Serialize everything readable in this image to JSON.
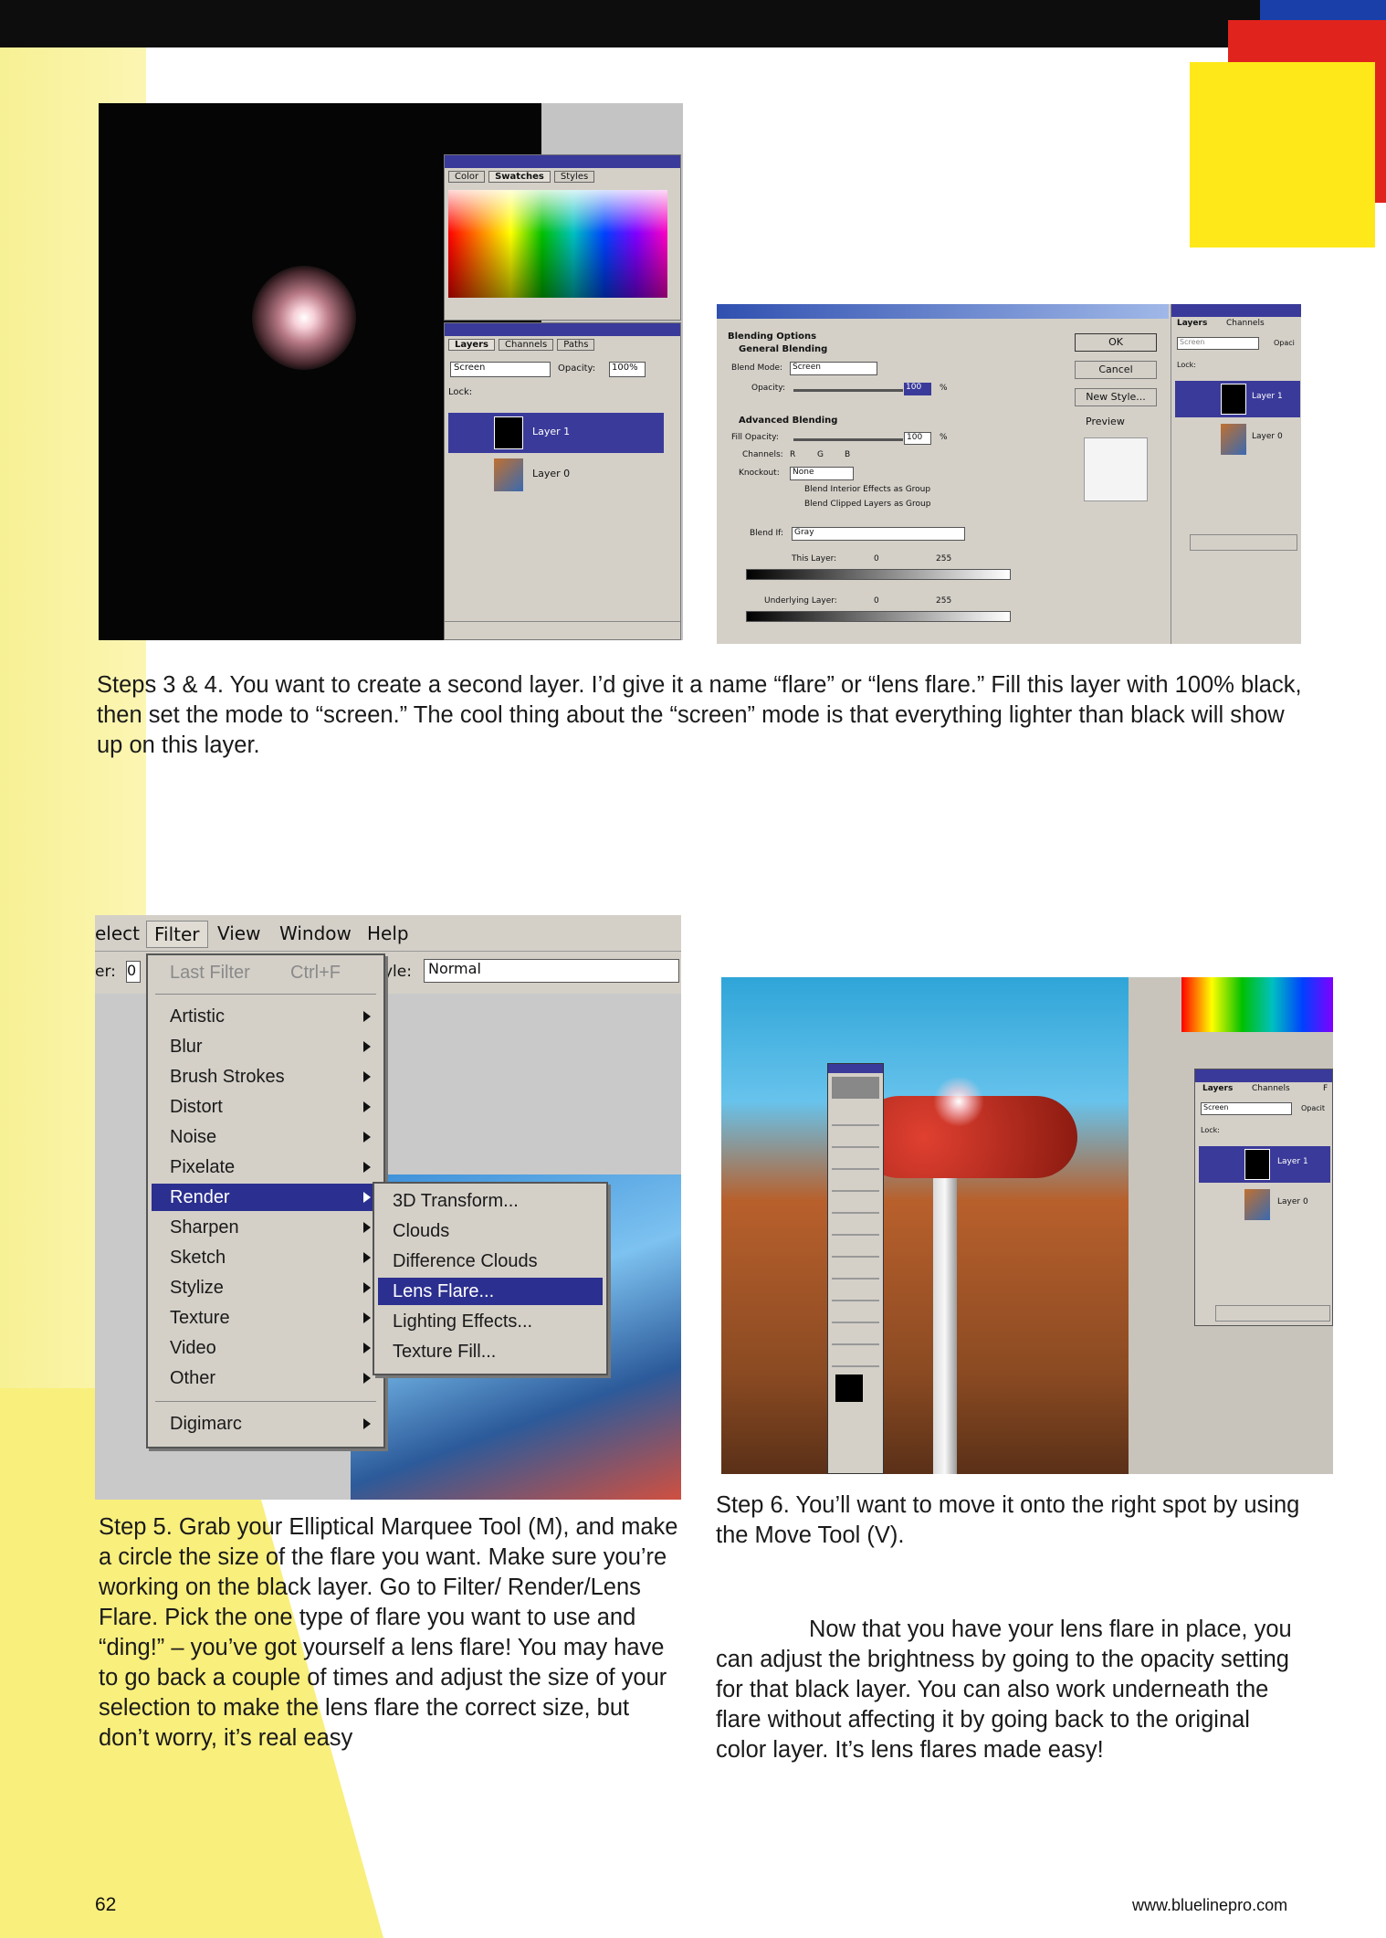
{
  "page": {
    "number": "62",
    "website": "www.bluelinepro.com"
  },
  "shot1": {
    "palette_tabs": [
      "Color",
      "Swatches",
      "Styles"
    ],
    "layers_tabs": [
      "Layers",
      "Channels",
      "Paths"
    ],
    "blend_mode": "Screen",
    "opacity_label": "Opacity:",
    "opacity_value": "100%",
    "lock_label": "Lock:",
    "layers": [
      "Layer 1",
      "Layer 0"
    ]
  },
  "shot2": {
    "section_title": "Blending Options",
    "general": "General Blending",
    "blend_mode_label": "Blend Mode:",
    "blend_mode_value": "Screen",
    "opacity_label": "Opacity:",
    "opacity_value": "100",
    "percent": "%",
    "advanced": "Advanced Blending",
    "fill_opacity_label": "Fill Opacity:",
    "fill_opacity_value": "100",
    "channels_label": "Channels:",
    "channels": [
      "R",
      "G",
      "B"
    ],
    "knockout_label": "Knockout:",
    "knockout_value": "None",
    "blend_interior": "Blend Interior Effects as Group",
    "blend_clipped": "Blend Clipped Layers as Group",
    "blend_if_label": "Blend If:",
    "blend_if_value": "Gray",
    "this_layer": "This Layer:",
    "underlying_layer": "Underlying Layer:",
    "range_min": "0",
    "range_max": "255",
    "buttons": [
      "OK",
      "Cancel",
      "New Style..."
    ],
    "preview_label": "Preview",
    "layers_tabs": [
      "Layers",
      "Channels"
    ],
    "layers_mode": "Screen",
    "layers_opacity": "Opaci",
    "lock_label": "Lock:",
    "layers": [
      "Layer 1",
      "Layer 0"
    ]
  },
  "caption1": "Steps 3 & 4. You want to create a second layer. I’d give it a name “flare” or “lens flare.” Fill this layer with 100% black, then set the mode to “screen.” The cool thing about the “screen” mode is that everything lighter than black will show up on this layer.",
  "shot3": {
    "menubar": [
      "elect",
      "Filter",
      "View",
      "Window",
      "Help"
    ],
    "opt_left": "er:",
    "opt_left_value": "0",
    "style_label": "yle:",
    "style_value": "Normal",
    "last_filter": "Last Filter",
    "last_filter_shortcut": "Ctrl+F",
    "filter_items": [
      "Artistic",
      "Blur",
      "Brush Strokes",
      "Distort",
      "Noise",
      "Pixelate",
      "Render",
      "Sharpen",
      "Sketch",
      "Stylize",
      "Texture",
      "Video",
      "Other"
    ],
    "digimarc": "Digimarc",
    "render_submenu": [
      "3D Transform...",
      "Clouds",
      "Difference Clouds",
      "Lens Flare...",
      "Lighting Effects...",
      "Texture Fill..."
    ]
  },
  "shot4": {
    "layers_tabs": [
      "Layers",
      "Channels",
      "F"
    ],
    "layers_mode": "Screen",
    "layers_opacity": "Opacit",
    "lock_label": "Lock:",
    "layers": [
      "Layer 1",
      "Layer 0"
    ]
  },
  "caption2": "Step 5. Grab your Elliptical Marquee Tool (M), and make a circle the size of the flare you want. Make sure you’re working on the black layer. Go to Filter/ Render/Lens Flare. Pick the one type of flare you want to use and “ding!” – you’ve got yourself a lens flare! You may have to go back a couple of times and adjust the size of your selection to make the lens flare the correct size, but don’t worry, it’s real easy",
  "caption3": "Step 6. You’ll want to move it onto the right spot by using the Move Tool (V).",
  "caption4": "Now that you have your lens flare in place, you can adjust the brightness by going to the opacity setting for that black layer. You can also work underneath the flare without affecting it by going back to the original color layer. It’s lens flares made easy!",
  "colors": {
    "accent_red": "#e0241d",
    "accent_yellow": "#ffe819",
    "accent_blue": "#1a3fa8",
    "menu_highlight": "#2b2f8f"
  }
}
